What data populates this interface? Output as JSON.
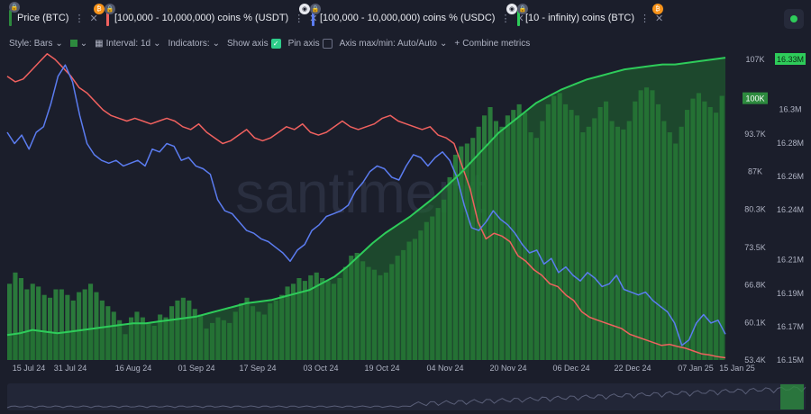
{
  "metrics": [
    {
      "label": "Price (BTC)",
      "color": "#1a3a22"
    },
    {
      "label": "[100,000 - 10,000,000) coins % (USDT)",
      "color": "#f0615f"
    },
    {
      "label": "[100,000 - 10,000,000) coins % (USDC)",
      "color": "#5b7cf0"
    },
    {
      "label": "[10 - infinity) coins (BTC)",
      "color": "#2ecc5a"
    }
  ],
  "toolbar": {
    "style": "Style: Bars",
    "interval": "Interval: 1d",
    "indicators": "Indicators:",
    "show_axis": "Show axis",
    "pin_axis": "Pin axis",
    "axis_minmax": "Axis max/min: Auto/Auto",
    "combine": "Combine metrics"
  },
  "watermark": "santiment",
  "colors": {
    "bg": "#1b1e2b",
    "green": "#2ecc5a",
    "red": "#f0615f",
    "blue": "#5b7cf0",
    "bars": "#2d8a3e"
  },
  "chart_data": {
    "type": "line",
    "x_ticks": [
      "15 Jul 24",
      "31 Jul 24",
      "16 Aug 24",
      "01 Sep 24",
      "17 Sep 24",
      "03 Oct 24",
      "19 Oct 24",
      "04 Nov 24",
      "20 Nov 24",
      "06 Dec 24",
      "22 Dec 24",
      "07 Jan 25",
      "15 Jan 25"
    ],
    "left_axis": {
      "ticks": [
        "107K",
        "100K",
        "93.7K",
        "87K",
        "80.3K",
        "73.5K",
        "66.8K",
        "60.1K",
        "53.4K"
      ],
      "min": 53400,
      "max": 107000,
      "highlight": "100K"
    },
    "right_axis": {
      "ticks": [
        "16.33M",
        "16.3M",
        "16.28M",
        "16.26M",
        "16.24M",
        "16.21M",
        "16.19M",
        "16.17M",
        "16.15M"
      ],
      "min": 16.15,
      "max": 16.33,
      "highlight": "16.33M"
    },
    "series": [
      {
        "name": "Price (BTC)",
        "style": "bars",
        "axis": "left",
        "values": [
          67000,
          69000,
          68000,
          66000,
          67000,
          66500,
          65000,
          64500,
          66000,
          66000,
          65000,
          64000,
          65500,
          66000,
          67000,
          65500,
          64000,
          63000,
          62000,
          60500,
          58000,
          61000,
          62000,
          61000,
          60000,
          59500,
          61500,
          61000,
          63000,
          64000,
          64500,
          64000,
          62500,
          61500,
          59000,
          60000,
          61000,
          60500,
          60000,
          62000,
          63500,
          64500,
          63000,
          62000,
          61500,
          63500,
          64000,
          65000,
          66500,
          67000,
          68000,
          67500,
          68500,
          69000,
          68000,
          67500,
          67000,
          68000,
          70000,
          72000,
          72500,
          71000,
          70000,
          69500,
          68500,
          69000,
          70500,
          72000,
          73000,
          74500,
          75000,
          76500,
          78000,
          79000,
          80500,
          82000,
          86000,
          90000,
          91500,
          92000,
          93000,
          95000,
          97000,
          98500,
          96000,
          95000,
          97000,
          98000,
          99000,
          97500,
          94000,
          93000,
          96000,
          99000,
          100500,
          101000,
          99000,
          98000,
          97000,
          94000,
          95000,
          96500,
          98500,
          99500,
          96000,
          95000,
          94500,
          96000,
          99500,
          101500,
          102000,
          101500,
          99000,
          96000,
          94000,
          92000,
          95000,
          98000,
          100000,
          101000,
          99500,
          98500,
          97500,
          100500
        ]
      },
      {
        "name": "[100,000 - 10,000,000) coins % (USDT)",
        "style": "line",
        "axis": "left",
        "values": [
          104000,
          103000,
          103500,
          105000,
          106500,
          108000,
          107000,
          105500,
          104000,
          102000,
          101000,
          99500,
          98000,
          97000,
          96500,
          96000,
          96500,
          96000,
          95500,
          96000,
          96500,
          96000,
          95000,
          94500,
          95500,
          94000,
          93000,
          92000,
          92500,
          93500,
          94500,
          93000,
          92500,
          93000,
          94000,
          95000,
          94500,
          95500,
          94000,
          93500,
          94000,
          95000,
          96000,
          95000,
          94500,
          95000,
          95500,
          96500,
          97000,
          96000,
          95500,
          95000,
          94500,
          95000,
          93500,
          93000,
          92000,
          88000,
          84000,
          78000,
          75000,
          76000,
          75500,
          74500,
          72000,
          71000,
          69500,
          68500,
          67000,
          66500,
          65000,
          64000,
          62000,
          61000,
          60500,
          60000,
          59500,
          59000,
          58000,
          57500,
          57000,
          56500,
          56000,
          56200,
          55800,
          55500,
          55000,
          54500,
          54300,
          54000,
          53800
        ]
      },
      {
        "name": "[100,000 - 10,000,000) coins % (USDC)",
        "style": "line",
        "axis": "left",
        "values": [
          94000,
          92000,
          93500,
          91000,
          94000,
          95000,
          99000,
          104000,
          106000,
          103000,
          97000,
          92000,
          90000,
          89000,
          88500,
          89000,
          88000,
          88500,
          89000,
          88000,
          91000,
          90500,
          92000,
          91500,
          89000,
          89500,
          88000,
          87500,
          86500,
          82000,
          80000,
          79500,
          78000,
          76500,
          76000,
          75000,
          74500,
          73500,
          72500,
          71000,
          73000,
          74000,
          76500,
          77500,
          79000,
          79500,
          80000,
          81000,
          83500,
          85000,
          87000,
          88000,
          87500,
          86000,
          85500,
          88000,
          90000,
          89500,
          88000,
          89500,
          90500,
          89000,
          86000,
          81000,
          77000,
          76500,
          78000,
          80000,
          78500,
          77500,
          76000,
          74000,
          72500,
          73000,
          70500,
          71500,
          69000,
          70000,
          68500,
          67500,
          69000,
          68000,
          66500,
          67000,
          68500,
          66000,
          65500,
          65000,
          65500,
          64000,
          63000,
          62000,
          60000,
          56000,
          57000,
          60000,
          61500,
          60000,
          60500,
          58000
        ]
      },
      {
        "name": "[10 - infinity) coins (BTC)",
        "style": "line",
        "axis": "right",
        "values": [
          16.165,
          16.166,
          16.168,
          16.167,
          16.166,
          16.167,
          16.168,
          16.169,
          16.17,
          16.171,
          16.172,
          16.172,
          16.173,
          16.174,
          16.175,
          16.176,
          16.178,
          16.18,
          16.182,
          16.184,
          16.185,
          16.186,
          16.188,
          16.19,
          16.192,
          16.196,
          16.2,
          16.206,
          16.213,
          16.22,
          16.226,
          16.231,
          16.236,
          16.242,
          16.248,
          16.255,
          16.262,
          16.27,
          16.278,
          16.286,
          16.292,
          16.298,
          16.304,
          16.308,
          16.312,
          16.315,
          16.318,
          16.32,
          16.322,
          16.324,
          16.325,
          16.326,
          16.327,
          16.327,
          16.328,
          16.329,
          16.33,
          16.331
        ]
      }
    ]
  }
}
